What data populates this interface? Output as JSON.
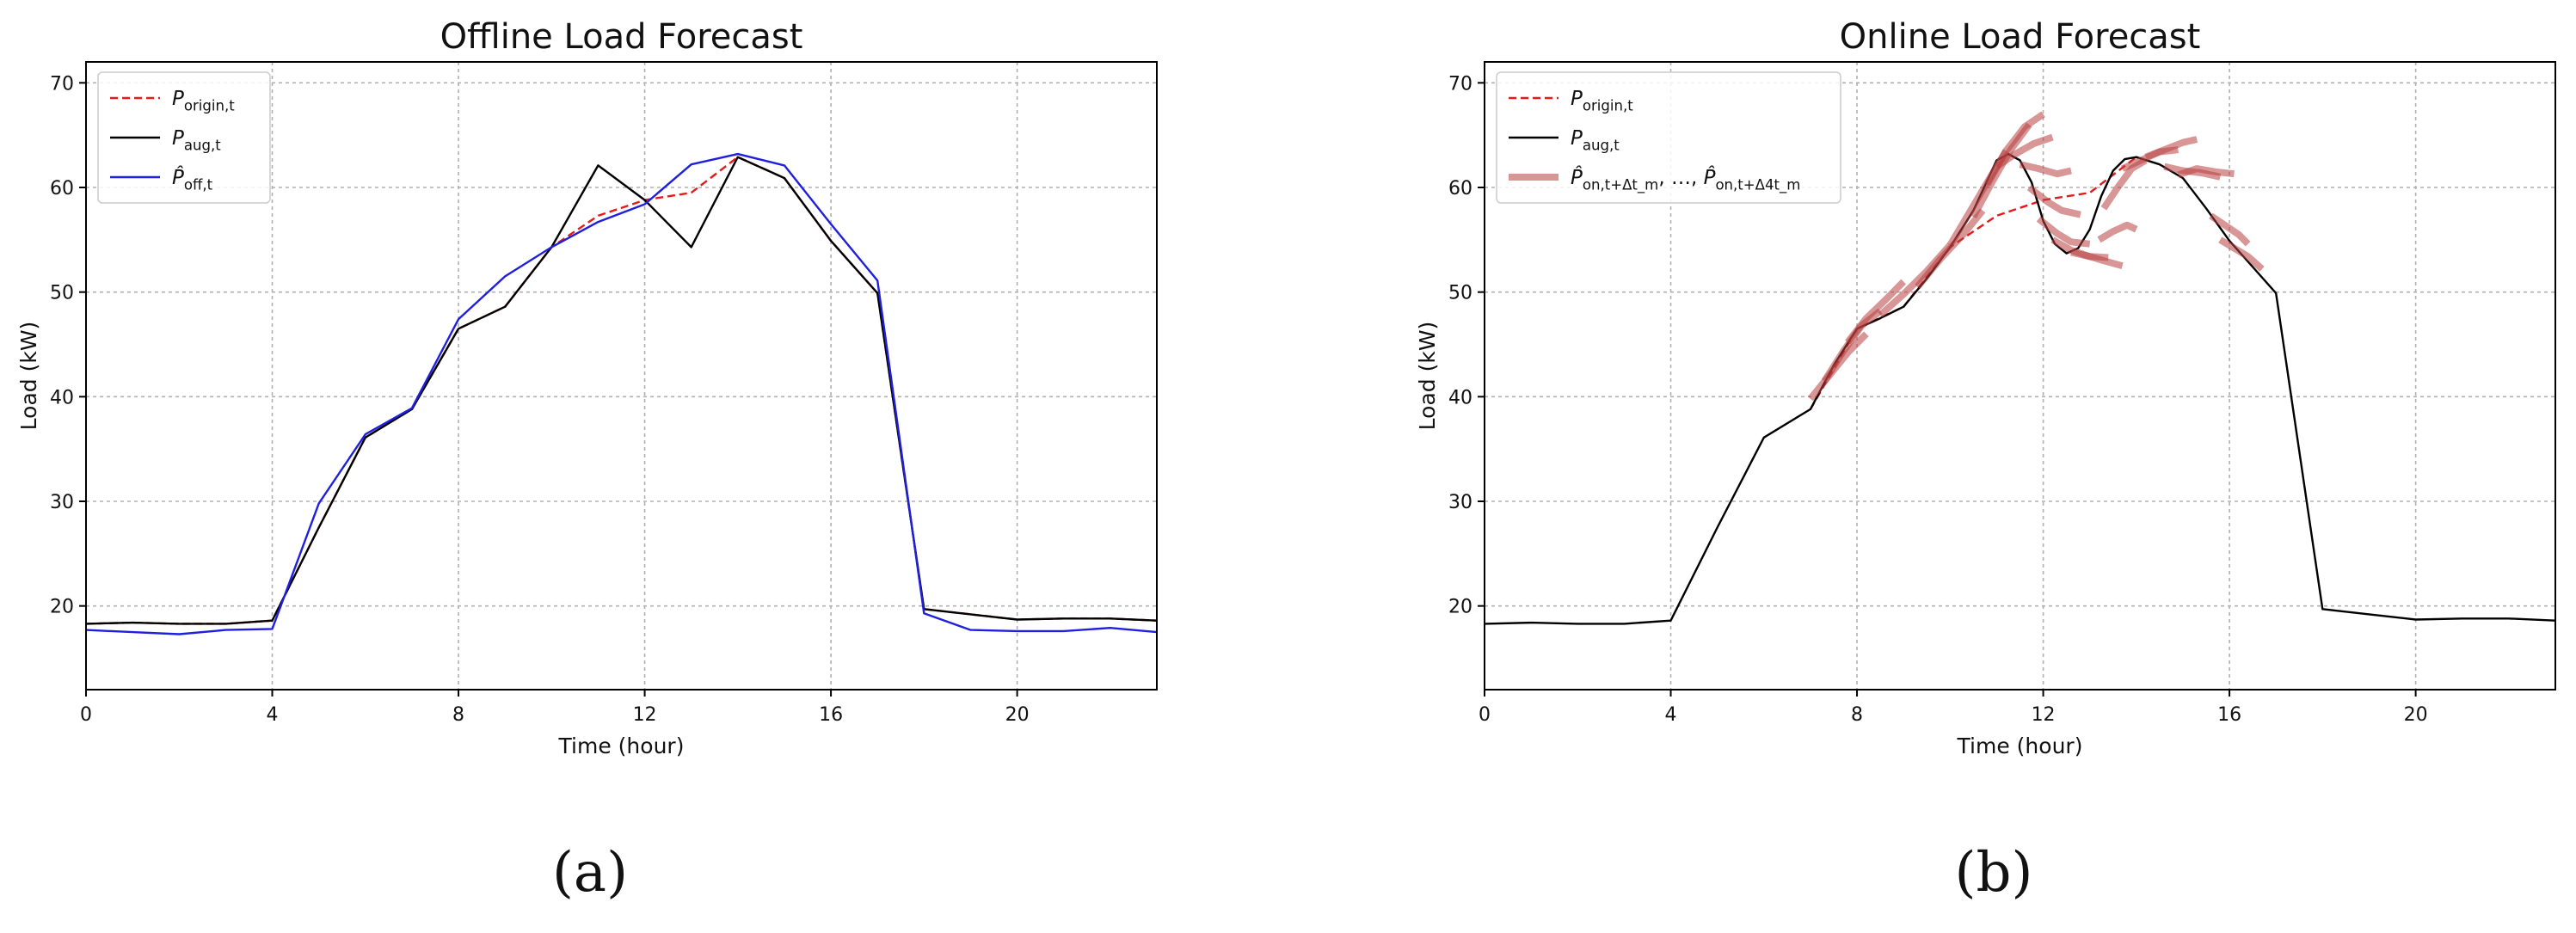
{
  "chart_data": [
    {
      "type": "line",
      "title": "Offline Load Forecast",
      "xlabel": "Time (hour)",
      "ylabel": "Load (kW)",
      "xlim": [
        0,
        23
      ],
      "ylim": [
        12,
        72
      ],
      "xticks": [
        0,
        4,
        8,
        12,
        16,
        20
      ],
      "yticks": [
        20,
        30,
        40,
        50,
        60,
        70
      ],
      "grid": true,
      "legend": "top-left",
      "panel_label": "(a)",
      "series": [
        {
          "name": "P_origin,t",
          "color": "#e41a1c",
          "style": "dashed",
          "x": [
            0,
            1,
            2,
            3,
            4,
            5,
            6,
            7,
            8,
            9,
            10,
            11,
            12,
            13,
            14,
            15,
            16,
            17,
            18,
            19,
            20,
            21,
            22,
            23
          ],
          "y": [
            18.3,
            18.4,
            18.3,
            18.3,
            18.6,
            27.5,
            36.1,
            38.8,
            46.5,
            48.6,
            54.3,
            57.3,
            58.8,
            59.5,
            62.9,
            60.9,
            54.9,
            49.9,
            19.7,
            19.2,
            18.7,
            18.8,
            18.8,
            18.6
          ]
        },
        {
          "name": "P_aug,t",
          "color": "#000000",
          "style": "solid",
          "x": [
            0,
            1,
            2,
            3,
            4,
            5,
            6,
            7,
            8,
            9,
            10,
            11,
            12,
            13,
            14,
            15,
            16,
            17,
            18,
            19,
            20,
            21,
            22,
            23
          ],
          "y": [
            18.3,
            18.4,
            18.3,
            18.3,
            18.6,
            27.5,
            36.1,
            38.8,
            46.5,
            48.6,
            54.3,
            62.1,
            58.8,
            54.3,
            62.9,
            60.9,
            54.9,
            49.9,
            19.7,
            19.2,
            18.7,
            18.8,
            18.8,
            18.6
          ]
        },
        {
          "name": "P̂_off,t",
          "color": "#1f1fe0",
          "style": "solid",
          "x": [
            0,
            1,
            2,
            3,
            4,
            5,
            6,
            7,
            8,
            9,
            10,
            11,
            12,
            13,
            14,
            15,
            16,
            17,
            18,
            19,
            20,
            21,
            22,
            23
          ],
          "y": [
            17.7,
            17.5,
            17.3,
            17.7,
            17.8,
            29.8,
            36.4,
            38.9,
            47.4,
            51.5,
            54.3,
            56.7,
            58.4,
            62.2,
            63.2,
            62.1,
            56.5,
            51.1,
            19.3,
            17.7,
            17.6,
            17.6,
            17.9,
            17.5
          ]
        }
      ]
    },
    {
      "type": "line",
      "title": "Online Load Forecast",
      "xlabel": "Time (hour)",
      "ylabel": "Load (kW)",
      "xlim": [
        0,
        23
      ],
      "ylim": [
        12,
        72
      ],
      "xticks": [
        0,
        4,
        8,
        12,
        16,
        20
      ],
      "yticks": [
        20,
        30,
        40,
        50,
        60,
        70
      ],
      "grid": true,
      "legend": "top-left",
      "panel_label": "(b)",
      "series": [
        {
          "name": "P_origin,t",
          "color": "#e41a1c",
          "style": "dashed",
          "x": [
            7,
            8,
            9,
            10,
            11,
            12,
            13,
            14
          ],
          "y": [
            38.8,
            46.5,
            48.6,
            54.3,
            57.3,
            58.8,
            59.5,
            62.9
          ]
        },
        {
          "name": "P_aug,t",
          "color": "#000000",
          "style": "solid",
          "x": [
            0,
            1,
            2,
            3,
            4,
            5,
            6,
            7,
            7.5,
            8,
            8.5,
            9,
            9.5,
            10,
            10.5,
            11,
            11.25,
            11.5,
            11.75,
            12,
            12.25,
            12.5,
            12.75,
            13,
            13.25,
            13.5,
            13.75,
            14,
            14.5,
            15,
            15.5,
            16,
            16.5,
            17,
            18,
            19,
            20,
            21,
            22,
            23
          ],
          "y": [
            18.3,
            18.4,
            18.3,
            18.3,
            18.6,
            27.5,
            36.1,
            38.8,
            43.0,
            46.5,
            47.5,
            48.6,
            51.3,
            54.3,
            57.8,
            62.6,
            63.2,
            62.6,
            60.5,
            56.8,
            54.6,
            53.7,
            54.2,
            56.0,
            59.2,
            61.6,
            62.7,
            62.9,
            62.2,
            60.9,
            58.0,
            54.9,
            52.4,
            49.9,
            19.7,
            19.2,
            18.7,
            18.8,
            18.8,
            18.6
          ]
        },
        {
          "name": "P̂_on,t+Δt_m, …, P̂_on,t+Δ4t_m",
          "color": "#b84040",
          "style": "thick",
          "segments": [
            [
              [
                7,
                39.8
              ],
              [
                7.4,
                42.0
              ],
              [
                7.8,
                44.2
              ],
              [
                8.2,
                46.0
              ]
            ],
            [
              [
                7.3,
                41.5
              ],
              [
                7.7,
                44.3
              ],
              [
                8.1,
                46.8
              ],
              [
                8.5,
                48.2
              ]
            ],
            [
              [
                7.8,
                45.2
              ],
              [
                8.2,
                47.5
              ],
              [
                8.6,
                49.2
              ],
              [
                9,
                51.0
              ]
            ],
            [
              [
                8.5,
                47.8
              ],
              [
                9,
                49.8
              ],
              [
                9.5,
                52.0
              ],
              [
                10,
                54.5
              ]
            ],
            [
              [
                9.3,
                50.5
              ],
              [
                9.8,
                53.2
              ],
              [
                10.3,
                55.6
              ],
              [
                10.7,
                57.8
              ]
            ],
            [
              [
                10,
                54.5
              ],
              [
                10.4,
                57.5
              ],
              [
                10.8,
                60.5
              ],
              [
                11.2,
                63.5
              ]
            ],
            [
              [
                10.5,
                57.2
              ],
              [
                10.9,
                60.5
              ],
              [
                11.3,
                63.6
              ],
              [
                11.7,
                66.0
              ]
            ],
            [
              [
                10.8,
                60.3
              ],
              [
                11.2,
                63.5
              ],
              [
                11.6,
                65.8
              ],
              [
                12,
                67.0
              ]
            ],
            [
              [
                11,
                62.0
              ],
              [
                11.4,
                63.2
              ],
              [
                11.8,
                64.2
              ],
              [
                12.2,
                64.8
              ]
            ],
            [
              [
                11.5,
                62.2
              ],
              [
                11.9,
                61.8
              ],
              [
                12.3,
                61.3
              ],
              [
                12.6,
                61.6
              ]
            ],
            [
              [
                11.7,
                60.0
              ],
              [
                12.1,
                58.6
              ],
              [
                12.4,
                57.8
              ],
              [
                12.8,
                57.4
              ]
            ],
            [
              [
                11.9,
                57.0
              ],
              [
                12.3,
                55.6
              ],
              [
                12.6,
                54.8
              ],
              [
                13,
                54.6
              ]
            ],
            [
              [
                12.2,
                55.0
              ],
              [
                12.6,
                54.0
              ],
              [
                13,
                53.4
              ],
              [
                13.4,
                53.3
              ]
            ],
            [
              [
                12.6,
                53.8
              ],
              [
                13,
                53.4
              ],
              [
                13.3,
                53.0
              ],
              [
                13.7,
                52.5
              ]
            ],
            [
              [
                13.2,
                55.0
              ],
              [
                13.5,
                55.8
              ],
              [
                13.8,
                56.4
              ],
              [
                14,
                56.0
              ]
            ],
            [
              [
                13.3,
                58.0
              ],
              [
                13.6,
                60.0
              ],
              [
                13.9,
                61.8
              ],
              [
                14.2,
                62.6
              ]
            ],
            [
              [
                13.7,
                61.8
              ],
              [
                14.1,
                62.6
              ],
              [
                14.5,
                63.4
              ],
              [
                14.9,
                63.6
              ]
            ],
            [
              [
                14.2,
                62.9
              ],
              [
                14.6,
                63.6
              ],
              [
                15,
                64.3
              ],
              [
                15.3,
                64.6
              ]
            ],
            [
              [
                14.6,
                62.0
              ],
              [
                15,
                61.6
              ],
              [
                15.4,
                61.4
              ],
              [
                15.8,
                61.0
              ]
            ],
            [
              [
                14.9,
                61.2
              ],
              [
                15.3,
                61.8
              ],
              [
                15.7,
                61.5
              ],
              [
                16.1,
                61.3
              ]
            ],
            [
              [
                15.6,
                57.3
              ],
              [
                15.9,
                56.4
              ],
              [
                16.2,
                55.5
              ],
              [
                16.4,
                54.6
              ]
            ],
            [
              [
                15.8,
                55.0
              ],
              [
                16.1,
                54.2
              ],
              [
                16.4,
                53.4
              ],
              [
                16.7,
                52.2
              ]
            ]
          ]
        }
      ]
    }
  ],
  "labels": {
    "panel_a": "(a)",
    "panel_b": "(b)"
  }
}
